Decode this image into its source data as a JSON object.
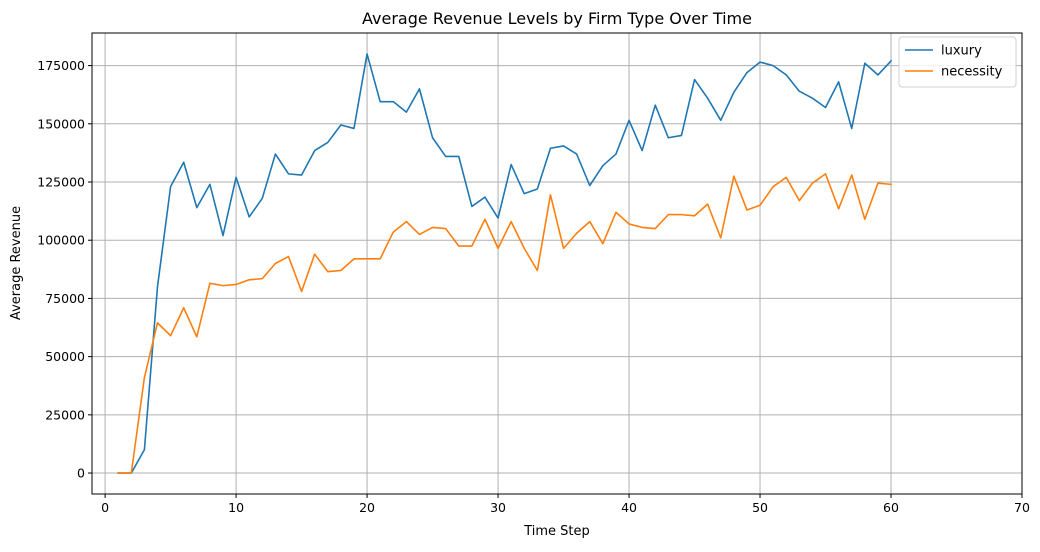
{
  "chart_data": {
    "type": "line",
    "title": "Average Revenue Levels by Firm Type Over Time",
    "xlabel": "Time Step",
    "ylabel": "Average Revenue",
    "xlim": [
      -1,
      70
    ],
    "ylim": [
      -9000,
      189000
    ],
    "xticks": [
      0,
      10,
      20,
      30,
      40,
      50,
      60,
      70
    ],
    "yticks": [
      0,
      25000,
      50000,
      75000,
      100000,
      125000,
      150000,
      175000
    ],
    "grid": true,
    "legend_position": "top-right",
    "colors": {
      "luxury": "#1f77b4",
      "necessity": "#ff7f0e",
      "grid": "#b0b0b0"
    },
    "x": [
      1,
      2,
      3,
      4,
      5,
      6,
      7,
      8,
      9,
      10,
      11,
      12,
      13,
      14,
      15,
      16,
      17,
      18,
      19,
      20,
      21,
      22,
      23,
      24,
      25,
      26,
      27,
      28,
      29,
      30,
      31,
      32,
      33,
      34,
      35,
      36,
      37,
      38,
      39,
      40,
      41,
      42,
      43,
      44,
      45,
      46,
      47,
      48,
      49,
      50,
      51,
      52,
      53,
      54,
      55,
      56,
      57,
      58,
      59,
      60
    ],
    "series": [
      {
        "name": "luxury",
        "values": [
          0,
          0,
          10000,
          80000,
          123000,
          133500,
          114000,
          124000,
          102000,
          127000,
          110000,
          118000,
          137000,
          128500,
          128000,
          138500,
          142000,
          149500,
          148000,
          180000,
          159500,
          159500,
          155000,
          165000,
          144000,
          136000,
          136000,
          114500,
          118500,
          109500,
          132500,
          120000,
          122000,
          139500,
          140500,
          137000,
          123500,
          132000,
          137000,
          151500,
          138500,
          158000,
          144000,
          145000,
          169000,
          161000,
          151500,
          163500,
          172000,
          176500,
          175000,
          171000,
          164000,
          161000,
          157000,
          168000,
          148000,
          176000,
          171000,
          177000
        ]
      },
      {
        "name": "necessity",
        "values": [
          0,
          0,
          41000,
          64500,
          59000,
          71000,
          58500,
          81500,
          80500,
          81000,
          83000,
          83500,
          90000,
          93000,
          78000,
          94000,
          86500,
          87000,
          92000,
          92000,
          92000,
          103500,
          108000,
          102500,
          105500,
          105000,
          97500,
          97500,
          109000,
          96500,
          108000,
          96500,
          87000,
          119500,
          96500,
          103000,
          108000,
          98500,
          112000,
          107000,
          105500,
          105000,
          111000,
          111000,
          110500,
          115500,
          101000,
          127500,
          113000,
          115000,
          123000,
          127000,
          117000,
          124500,
          128500,
          113500,
          128000,
          109000,
          124500,
          124000
        ]
      }
    ]
  }
}
